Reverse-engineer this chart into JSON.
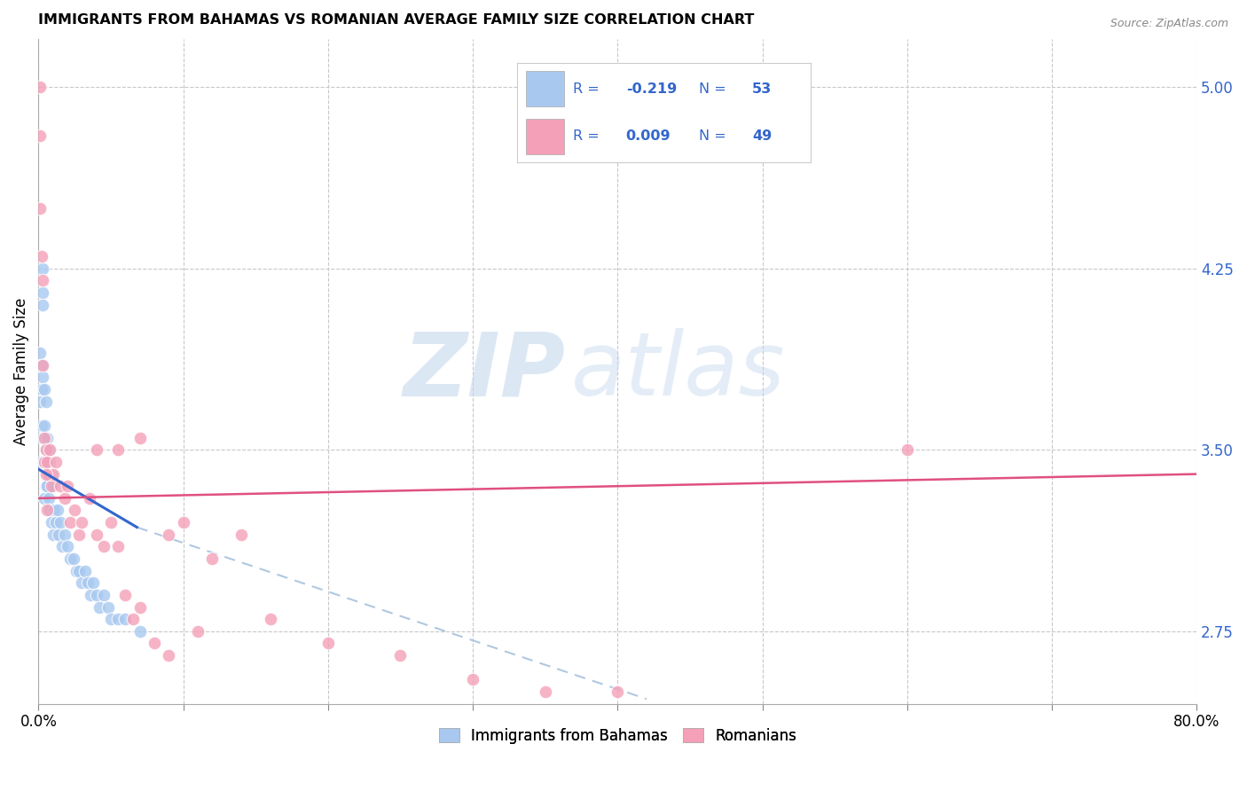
{
  "title": "IMMIGRANTS FROM BAHAMAS VS ROMANIAN AVERAGE FAMILY SIZE CORRELATION CHART",
  "source": "Source: ZipAtlas.com",
  "ylabel": "Average Family Size",
  "xlim": [
    0.0,
    0.8
  ],
  "ylim": [
    2.45,
    5.2
  ],
  "yticks": [
    2.75,
    3.5,
    4.25,
    5.0
  ],
  "legend_R1": "-0.219",
  "legend_N1": "53",
  "legend_R2": "0.009",
  "legend_N2": "49",
  "color_blue": "#A8C8F0",
  "color_pink": "#F4A0B8",
  "color_blue_line": "#3366CC",
  "color_pink_line": "#E05080",
  "color_dashed": "#B0C8E0",
  "text_blue": "#3366CC",
  "background": "#FFFFFF",
  "watermark_zip": "ZIP",
  "watermark_atlas": "atlas",
  "blue_dots_x": [
    0.001,
    0.001,
    0.002,
    0.002,
    0.002,
    0.002,
    0.003,
    0.003,
    0.003,
    0.003,
    0.004,
    0.004,
    0.004,
    0.004,
    0.005,
    0.005,
    0.005,
    0.006,
    0.006,
    0.007,
    0.007,
    0.008,
    0.008,
    0.009,
    0.009,
    0.01,
    0.01,
    0.011,
    0.012,
    0.013,
    0.014,
    0.015,
    0.016,
    0.018,
    0.02,
    0.022,
    0.024,
    0.026,
    0.028,
    0.03,
    0.032,
    0.034,
    0.036,
    0.038,
    0.04,
    0.042,
    0.045,
    0.048,
    0.05,
    0.055,
    0.06,
    0.07,
    0.003
  ],
  "blue_dots_y": [
    3.9,
    3.7,
    3.85,
    3.75,
    3.6,
    3.45,
    4.15,
    4.1,
    3.8,
    3.55,
    3.75,
    3.6,
    3.45,
    3.3,
    3.7,
    3.5,
    3.35,
    3.55,
    3.35,
    3.5,
    3.3,
    3.45,
    3.25,
    3.4,
    3.2,
    3.35,
    3.15,
    3.25,
    3.2,
    3.25,
    3.15,
    3.2,
    3.1,
    3.15,
    3.1,
    3.05,
    3.05,
    3.0,
    3.0,
    2.95,
    3.0,
    2.95,
    2.9,
    2.95,
    2.9,
    2.85,
    2.9,
    2.85,
    2.8,
    2.8,
    2.8,
    2.75,
    4.25
  ],
  "pink_dots_x": [
    0.001,
    0.001,
    0.001,
    0.002,
    0.003,
    0.003,
    0.004,
    0.004,
    0.005,
    0.006,
    0.007,
    0.008,
    0.009,
    0.01,
    0.012,
    0.015,
    0.018,
    0.02,
    0.022,
    0.025,
    0.028,
    0.03,
    0.035,
    0.04,
    0.045,
    0.05,
    0.055,
    0.06,
    0.065,
    0.07,
    0.08,
    0.09,
    0.1,
    0.12,
    0.14,
    0.16,
    0.2,
    0.25,
    0.3,
    0.35,
    0.4,
    0.04,
    0.055,
    0.07,
    0.09,
    0.11,
    0.6,
    0.005,
    0.006
  ],
  "pink_dots_y": [
    5.0,
    4.8,
    4.5,
    4.3,
    4.2,
    3.85,
    3.55,
    3.45,
    3.5,
    3.45,
    3.4,
    3.5,
    3.35,
    3.4,
    3.45,
    3.35,
    3.3,
    3.35,
    3.2,
    3.25,
    3.15,
    3.2,
    3.3,
    3.15,
    3.1,
    3.2,
    3.1,
    2.9,
    2.8,
    2.85,
    2.7,
    2.65,
    3.2,
    3.05,
    3.15,
    2.8,
    2.7,
    2.65,
    2.55,
    2.5,
    2.5,
    3.5,
    3.5,
    3.55,
    3.15,
    2.75,
    3.5,
    3.4,
    3.25
  ],
  "blue_line_x": [
    0.0,
    0.068
  ],
  "blue_line_y": [
    3.42,
    3.18
  ],
  "pink_line_x": [
    0.0,
    0.8
  ],
  "pink_line_y": [
    3.3,
    3.4
  ],
  "dashed_line_x": [
    0.068,
    0.42
  ],
  "dashed_line_y": [
    3.18,
    2.47
  ]
}
